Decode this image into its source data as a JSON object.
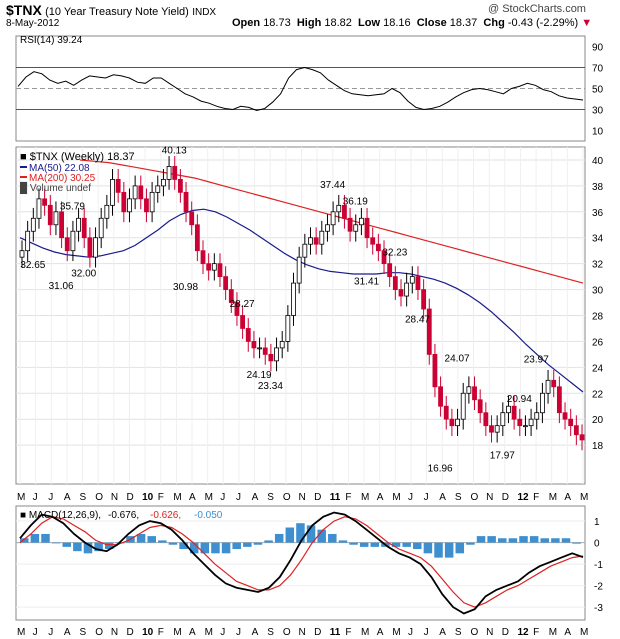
{
  "header": {
    "symbol": "$TNX",
    "name": "(10 Year Treasury Note Yield)",
    "exchange": "INDX",
    "date": "8-May-2012",
    "watermark": "@ StockCharts.com",
    "open_label": "Open",
    "open": "18.73",
    "high_label": "High",
    "high": "18.82",
    "low_label": "Low",
    "low": "18.16",
    "close_label": "Close",
    "close": "18.37",
    "chg_label": "Chg",
    "chg": "-0.43 (-2.29%)"
  },
  "colors": {
    "price_up": "#000000",
    "price_down": "#cc0033",
    "ma50": "#1a1a8c",
    "ma200": "#dd2222",
    "macd": "#000000",
    "signal": "#dd2222",
    "histogram": "#3d8fd0",
    "rsi": "#000000"
  },
  "chart_data": [
    {
      "type": "line",
      "panel": "rsi",
      "legend": "RSI(14) 39.24",
      "y_ticks": [
        "90",
        "70",
        "50",
        "30",
        "10"
      ],
      "ylim": [
        0,
        100
      ],
      "reference_lines": [
        70,
        50,
        30
      ],
      "series": [
        {
          "name": "RSI(14)",
          "values": [
            52,
            61,
            66,
            64,
            58,
            55,
            57,
            53,
            58,
            62,
            61,
            60,
            63,
            62,
            60,
            56,
            55,
            60,
            60,
            55,
            50,
            45,
            42,
            38,
            36,
            33,
            31,
            30,
            33,
            32,
            29,
            31,
            37,
            45,
            60,
            68,
            70,
            68,
            65,
            58,
            53,
            48,
            45,
            44,
            43,
            44,
            45,
            50,
            46,
            38,
            32,
            30,
            31,
            33,
            37,
            42,
            46,
            49,
            50,
            49,
            47,
            45,
            50,
            52,
            55,
            53,
            49,
            47,
            43,
            41,
            40,
            39
          ]
        }
      ]
    },
    {
      "type": "candlestick",
      "panel": "price",
      "legend": [
        "$TNX (Weekly) 18.37",
        "MA(50) 22.08",
        "MA(200) 30.25",
        "Volume undef"
      ],
      "ylim": [
        15,
        41
      ],
      "y_ticks": [
        "40",
        "38",
        "36",
        "34",
        "32",
        "30",
        "28",
        "26",
        "24",
        "22",
        "20",
        "18"
      ],
      "x_ticks": [
        "M",
        "J",
        "J",
        "A",
        "S",
        "O",
        "N",
        "D",
        "10",
        "F",
        "M",
        "A",
        "M",
        "J",
        "J",
        "A",
        "S",
        "O",
        "N",
        "D",
        "11",
        "F",
        "M",
        "A",
        "M",
        "J",
        "J",
        "A",
        "S",
        "O",
        "N",
        "D",
        "12",
        "F",
        "M",
        "A",
        "M"
      ],
      "annotations": [
        {
          "label": "35.79",
          "value": 35.79
        },
        {
          "label": "32.65",
          "value": 32.65
        },
        {
          "label": "31.06",
          "value": 31.06
        },
        {
          "label": "32.00",
          "value": 32.0
        },
        {
          "label": "40.13",
          "value": 40.13
        },
        {
          "label": "30.98",
          "value": 30.98
        },
        {
          "label": "28.27",
          "value": 28.27
        },
        {
          "label": "24.19",
          "value": 24.19
        },
        {
          "label": "23.34",
          "value": 23.34
        },
        {
          "label": "37.44",
          "value": 37.44
        },
        {
          "label": "36.19",
          "value": 36.19
        },
        {
          "label": "31.41",
          "value": 31.41
        },
        {
          "label": "32.23",
          "value": 32.23
        },
        {
          "label": "28.47",
          "value": 28.47
        },
        {
          "label": "24.07",
          "value": 24.07
        },
        {
          "label": "16.96",
          "value": 16.96
        },
        {
          "label": "23.97",
          "value": 23.97
        },
        {
          "label": "20.94",
          "value": 20.94
        },
        {
          "label": "17.97",
          "value": 17.97
        }
      ],
      "close": [
        33.0,
        34.5,
        35.5,
        37.0,
        36.5,
        35.0,
        36.0,
        34.0,
        33.0,
        34.5,
        35.5,
        34.0,
        32.5,
        34.0,
        35.5,
        36.5,
        38.5,
        37.5,
        36.0,
        37.0,
        38.0,
        37.0,
        36.0,
        37.5,
        38.0,
        38.5,
        39.5,
        38.5,
        37.5,
        36.0,
        35.0,
        33.0,
        32.0,
        31.5,
        32.0,
        31.0,
        30.0,
        29.0,
        28.0,
        27.0,
        26.0,
        25.5,
        25.5,
        25.0,
        24.5,
        25.5,
        26.0,
        28.0,
        30.5,
        32.5,
        33.5,
        34.0,
        33.5,
        34.5,
        35.0,
        36.0,
        36.5,
        35.5,
        34.5,
        35.0,
        35.5,
        34.0,
        33.5,
        33.0,
        32.0,
        31.0,
        30.0,
        29.5,
        30.5,
        31.0,
        30.0,
        28.5,
        25.0,
        22.5,
        21.0,
        20.0,
        19.5,
        20.0,
        22.0,
        22.5,
        21.5,
        20.5,
        19.5,
        19.0,
        19.5,
        20.5,
        21.0,
        20.0,
        19.5,
        19.5,
        20.0,
        20.5,
        22.0,
        23.0,
        22.5,
        20.5,
        20.0,
        19.5,
        18.8,
        18.4
      ],
      "ma50": [
        34.0,
        33.6,
        33.2,
        32.9,
        32.7,
        32.6,
        32.5,
        32.6,
        32.8,
        33.0,
        33.4,
        34.0,
        34.6,
        35.3,
        35.8,
        36.1,
        36.2,
        36.0,
        35.6,
        35.1,
        34.6,
        34.0,
        33.4,
        32.8,
        32.3,
        31.9,
        31.6,
        31.4,
        31.3,
        31.2,
        31.2,
        31.2,
        31.3,
        31.3,
        31.2,
        31.0,
        30.8,
        30.5,
        30.1,
        29.6,
        29.0,
        28.3,
        27.5,
        26.7,
        25.8,
        25.0,
        24.2,
        23.5,
        22.8,
        22.1
      ],
      "ma200": [
        40.0,
        39.9,
        39.8,
        39.6,
        39.4,
        39.2,
        39.0,
        38.8,
        38.6,
        38.3,
        38.0,
        37.7,
        37.4,
        37.1,
        36.8,
        36.5,
        36.2,
        35.9,
        35.6,
        35.3,
        35.0,
        34.7,
        34.4,
        34.1,
        33.8,
        33.5,
        33.2,
        32.9,
        32.6,
        32.3,
        32.0,
        31.7,
        31.4,
        31.1,
        30.8,
        30.5
      ]
    },
    {
      "type": "line",
      "panel": "macd",
      "legend": [
        "MACD(12,26,9)",
        "-0.676",
        "-0.626",
        "-0.050"
      ],
      "y_ticks": [
        "1",
        "0",
        "-1",
        "-2",
        "-3"
      ],
      "ylim": [
        -3.6,
        1.7
      ],
      "series": [
        {
          "name": "MACD(12,26,9)",
          "values": [
            0.2,
            0.8,
            1.3,
            1.2,
            0.9,
            0.4,
            0.0,
            -0.3,
            -0.4,
            -0.1,
            0.4,
            0.8,
            1.0,
            0.9,
            0.6,
            0.1,
            -0.5,
            -1.0,
            -1.5,
            -1.9,
            -2.1,
            -2.2,
            -2.3,
            -2.1,
            -1.6,
            -0.8,
            0.1,
            0.8,
            1.2,
            1.4,
            1.3,
            1.0,
            0.6,
            0.2,
            -0.2,
            -0.5,
            -0.7,
            -1.0,
            -1.6,
            -2.4,
            -3.0,
            -3.3,
            -3.1,
            -2.5,
            -2.2,
            -2.0,
            -1.8,
            -1.4,
            -1.1,
            -0.9,
            -0.7,
            -0.5,
            -0.68
          ]
        },
        {
          "name": "Signal",
          "values": [
            0.0,
            0.4,
            0.9,
            1.2,
            1.1,
            0.8,
            0.5,
            0.1,
            -0.1,
            -0.1,
            0.1,
            0.4,
            0.7,
            0.8,
            0.7,
            0.4,
            0.0,
            -0.5,
            -1.0,
            -1.4,
            -1.8,
            -2.0,
            -2.2,
            -2.2,
            -2.0,
            -1.5,
            -0.8,
            0.0,
            0.6,
            1.0,
            1.2,
            1.1,
            0.8,
            0.4,
            0.0,
            -0.3,
            -0.5,
            -0.7,
            -1.1,
            -1.7,
            -2.3,
            -2.8,
            -3.0,
            -2.8,
            -2.5,
            -2.2,
            -2.0,
            -1.7,
            -1.4,
            -1.1,
            -0.9,
            -0.7,
            -0.626
          ]
        },
        {
          "name": "Histogram",
          "values": [
            0.2,
            0.4,
            0.4,
            0.0,
            -0.2,
            -0.4,
            -0.5,
            -0.4,
            -0.3,
            0.0,
            0.3,
            0.4,
            0.3,
            0.1,
            -0.1,
            -0.3,
            -0.5,
            -0.5,
            -0.5,
            -0.5,
            -0.3,
            -0.2,
            -0.1,
            0.1,
            0.4,
            0.7,
            0.9,
            0.8,
            0.6,
            0.4,
            0.1,
            -0.1,
            -0.2,
            -0.2,
            -0.2,
            -0.2,
            -0.2,
            -0.3,
            -0.5,
            -0.7,
            -0.7,
            -0.5,
            -0.1,
            0.3,
            0.3,
            0.2,
            0.2,
            0.3,
            0.3,
            0.2,
            0.2,
            0.2,
            -0.05
          ]
        }
      ]
    }
  ],
  "bottom_x_ticks": [
    "M",
    "J",
    "J",
    "A",
    "S",
    "O",
    "N",
    "D",
    "10",
    "F",
    "M",
    "A",
    "M",
    "J",
    "J",
    "A",
    "S",
    "O",
    "N",
    "D",
    "11",
    "F",
    "M",
    "A",
    "M",
    "J",
    "J",
    "A",
    "S",
    "O",
    "N",
    "D",
    "12",
    "F",
    "M",
    "A",
    "M"
  ]
}
